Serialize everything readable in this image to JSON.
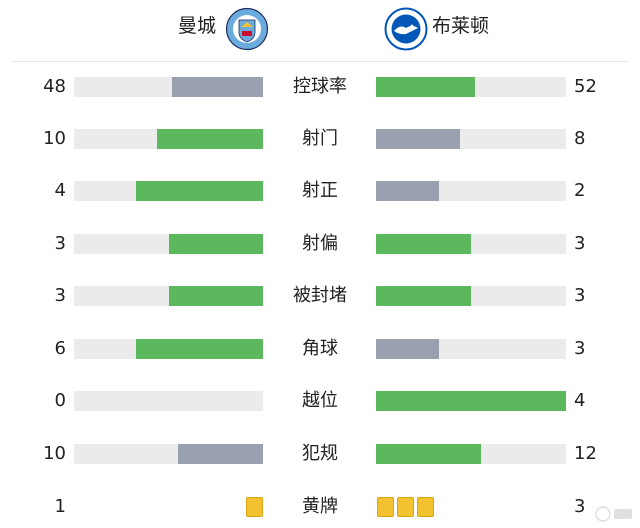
{
  "home": {
    "name": "曼城",
    "crest_text": "MANCHESTER CITY",
    "crest_color": "#6cabdd"
  },
  "away": {
    "name": "布莱顿",
    "crest_text": "BRIGHTON & HOVE ALBION",
    "crest_color": "#0057b8"
  },
  "colors": {
    "winner": "#5cb85c",
    "loser": "#99a0b0",
    "track": "#ebebeb",
    "card": "#f2c230"
  },
  "stats": [
    {
      "label": "控球率",
      "home": "48",
      "away": "52",
      "home_fill": 0.48,
      "away_fill": 0.52,
      "home_color": "loser",
      "away_color": "winner"
    },
    {
      "label": "射门",
      "home": "10",
      "away": "8",
      "home_fill": 0.56,
      "away_fill": 0.44,
      "home_color": "winner",
      "away_color": "loser"
    },
    {
      "label": "射正",
      "home": "4",
      "away": "2",
      "home_fill": 0.67,
      "away_fill": 0.33,
      "home_color": "winner",
      "away_color": "loser"
    },
    {
      "label": "射偏",
      "home": "3",
      "away": "3",
      "home_fill": 0.5,
      "away_fill": 0.5,
      "home_color": "winner",
      "away_color": "winner"
    },
    {
      "label": "被封堵",
      "home": "3",
      "away": "3",
      "home_fill": 0.5,
      "away_fill": 0.5,
      "home_color": "winner",
      "away_color": "winner"
    },
    {
      "label": "角球",
      "home": "6",
      "away": "3",
      "home_fill": 0.67,
      "away_fill": 0.33,
      "home_color": "winner",
      "away_color": "loser"
    },
    {
      "label": "越位",
      "home": "0",
      "away": "4",
      "home_fill": 0.0,
      "away_fill": 1.0,
      "home_color": "loser",
      "away_color": "winner"
    },
    {
      "label": "犯规",
      "home": "10",
      "away": "12",
      "home_fill": 0.45,
      "away_fill": 0.55,
      "home_color": "loser",
      "away_color": "winner"
    }
  ],
  "cards": {
    "label": "黄牌",
    "home": "1",
    "away": "3",
    "home_count": 1,
    "away_count": 3
  }
}
